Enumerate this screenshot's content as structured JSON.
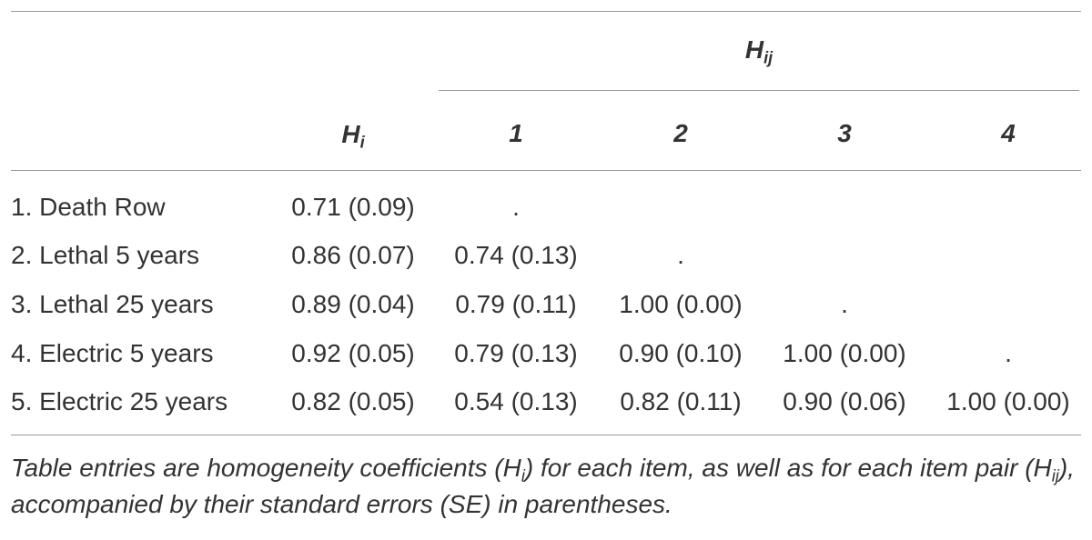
{
  "header": {
    "hij": [
      "H",
      "ij"
    ],
    "hi": [
      "H",
      "i"
    ],
    "columns": [
      "1",
      "2",
      "3",
      "4"
    ]
  },
  "table": {
    "rows": [
      [
        "1. Death Row",
        "0.71 (0.09)",
        "."
      ],
      [
        "2. Lethal 5 years",
        "0.86 (0.07)",
        "0.74 (0.13)",
        "."
      ],
      [
        "3. Lethal 25 years",
        "0.89 (0.04)",
        "0.79 (0.11)",
        "1.00 (0.00)",
        "."
      ],
      [
        "4. Electric 5 years",
        "0.92 (0.05)",
        "0.79 (0.13)",
        "0.90 (0.10)",
        "1.00 (0.00)",
        "."
      ],
      [
        "5. Electric 25 years",
        "0.82 (0.05)",
        "0.54 (0.13)",
        "0.82 (0.11)",
        "0.90 (0.06)",
        "1.00 (0.00)"
      ]
    ]
  },
  "note": [
    "Table entries are homogeneity coefficients (H",
    "i",
    ") for each item, as well as for each item pair (H",
    "ij",
    "), accompanied by their standard errors (SE) in parentheses."
  ]
}
